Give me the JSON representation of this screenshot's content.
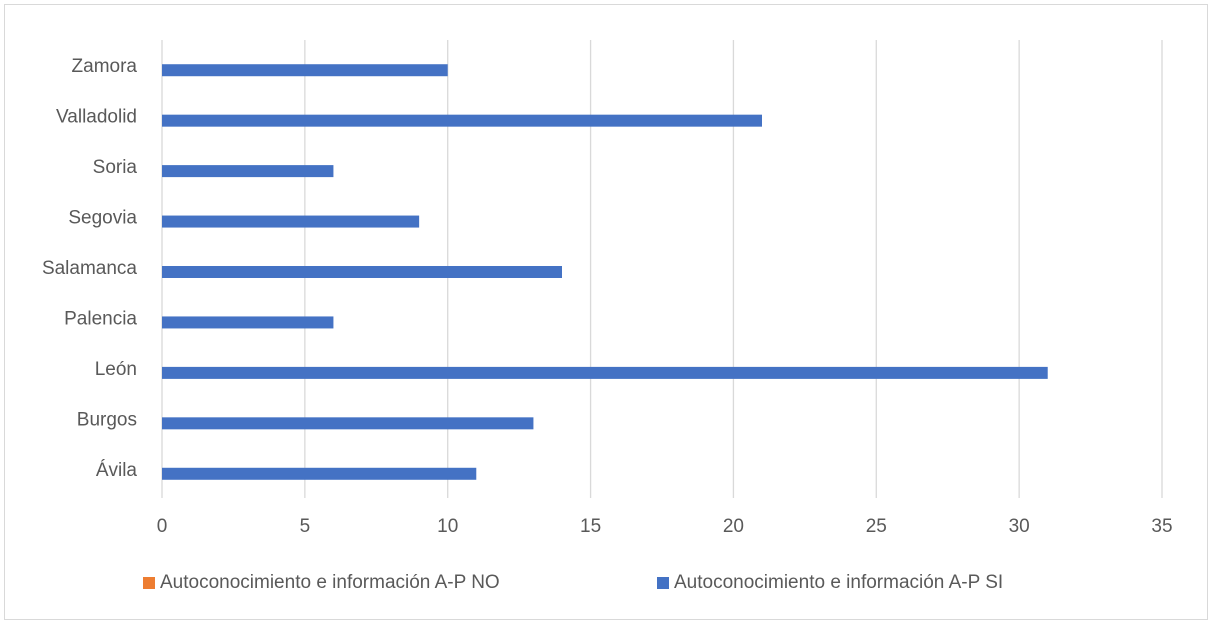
{
  "chart_data": {
    "type": "bar",
    "orientation": "horizontal",
    "categories": [
      "Ávila",
      "Burgos",
      "León",
      "Palencia",
      "Salamanca",
      "Segovia",
      "Soria",
      "Valladolid",
      "Zamora"
    ],
    "series": [
      {
        "name": "Autoconocimiento e información A-P NO",
        "color": "#ed7d31",
        "values": [
          0,
          0,
          0,
          0,
          0,
          0,
          0,
          0,
          0
        ]
      },
      {
        "name": "Autoconocimiento e información A-P SI",
        "color": "#4472c4",
        "values": [
          11,
          13,
          31,
          6,
          14,
          9,
          6,
          21,
          10
        ]
      }
    ],
    "xlim": [
      0,
      35
    ],
    "xticks": [
      0,
      5,
      10,
      15,
      20,
      25,
      30,
      35
    ],
    "grid": true,
    "legend": "bottom"
  }
}
